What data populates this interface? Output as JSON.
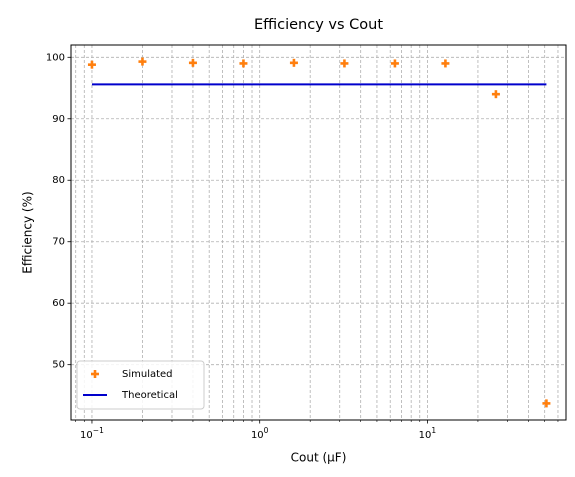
{
  "chart_data": {
    "type": "scatter",
    "title": "Efficiency vs Cout",
    "xlabel": "Cout (μF)",
    "ylabel": "Efficiency (%)",
    "xscale": "log",
    "xlim": [
      0.075,
      67
    ],
    "ylim": [
      41,
      102
    ],
    "grid": "on (major and minor, dashed)",
    "legend_position": "lower-left",
    "x_major_ticks": [
      {
        "value": 0.1,
        "base": "10",
        "exp": "−1"
      },
      {
        "value": 1,
        "base": "10",
        "exp": "0"
      },
      {
        "value": 10,
        "base": "10",
        "exp": "1"
      }
    ],
    "y_ticks": [
      {
        "value": 50,
        "label": "50"
      },
      {
        "value": 60,
        "label": "60"
      },
      {
        "value": 70,
        "label": "70"
      },
      {
        "value": 80,
        "label": "80"
      },
      {
        "value": 90,
        "label": "90"
      },
      {
        "value": 100,
        "label": "100"
      }
    ],
    "series": [
      {
        "name": "Simulated",
        "kind": "scatter",
        "marker": "plus",
        "color": "#ff7f0e",
        "points": [
          {
            "x": 0.1,
            "y": 98.8
          },
          {
            "x": 0.2,
            "y": 99.3
          },
          {
            "x": 0.4,
            "y": 99.1
          },
          {
            "x": 0.8,
            "y": 99.0
          },
          {
            "x": 1.6,
            "y": 99.1
          },
          {
            "x": 3.2,
            "y": 99.0
          },
          {
            "x": 6.4,
            "y": 99.0
          },
          {
            "x": 12.8,
            "y": 99.0
          },
          {
            "x": 25.6,
            "y": 94.0
          },
          {
            "x": 51.2,
            "y": 43.7
          }
        ]
      },
      {
        "name": "Theoretical",
        "kind": "line",
        "color": "#0000cc",
        "points": [
          {
            "x": 0.1,
            "y": 95.6
          },
          {
            "x": 51.2,
            "y": 95.6
          }
        ]
      }
    ]
  }
}
